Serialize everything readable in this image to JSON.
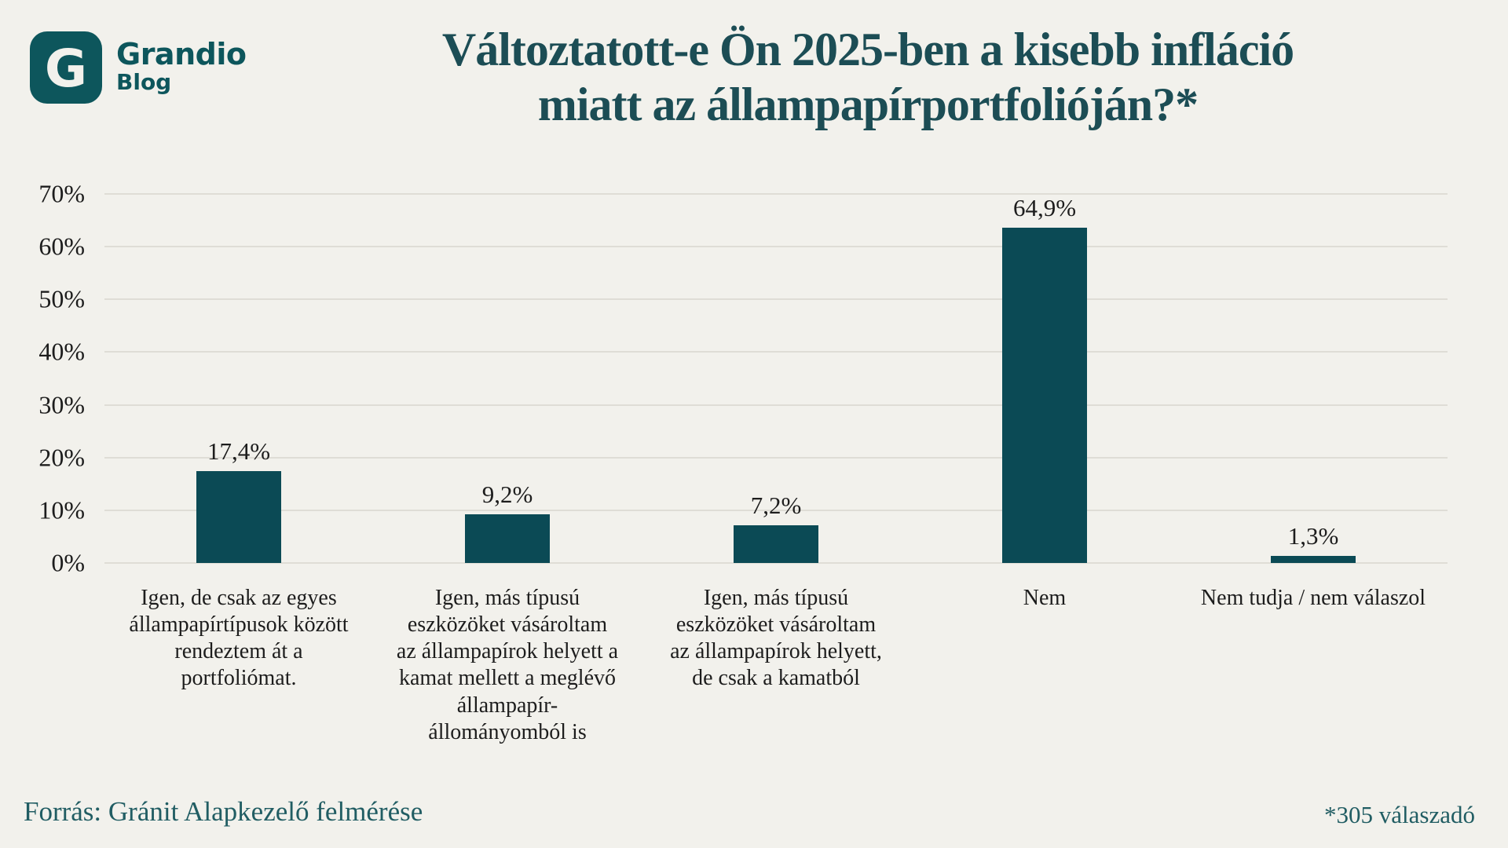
{
  "header": {
    "brand_name": "Grandio",
    "brand_sub": "Blog",
    "logo_letter": "G",
    "title": "Változtatott-e Ön 2025-ben a kisebb infláció\nmiatt az állampapírportfolióján?*"
  },
  "chart_data": {
    "type": "bar",
    "title": "Változtatott-e Ön 2025-ben a kisebb infláció miatt az állampapírportfolióján?*",
    "categories": [
      "Igen, de csak az egyes\nállampapírtípusok között\nrendeztem át a\nportfoliómat.",
      "Igen, más típusú\neszközöket vásároltam\naz állampapírok helyett a\nkamat mellett a meglévő\nállampapír-\nállományomból is",
      "Igen, más típusú\neszközöket vásároltam\naz állampapírok helyett,\nde csak a kamatból",
      "Nem",
      "Nem tudja / nem válaszol"
    ],
    "values": [
      17.4,
      9.2,
      7.2,
      64.9,
      1.3
    ],
    "value_labels": [
      "17,4%",
      "9,2%",
      "7,2%",
      "64,9%",
      "1,3%"
    ],
    "xlabel": "",
    "ylabel": "",
    "ylim": [
      0,
      70
    ],
    "ytick_step": 10,
    "ytick_suffix": "%",
    "ytick_labels": [
      "0%",
      "10%",
      "20%",
      "30%",
      "40%",
      "50%",
      "60%",
      "70%"
    ],
    "grid": true,
    "legend": false,
    "bar_color": "#0b4a55"
  },
  "footer": {
    "source": "Forrás: Gránit Alapkezelő felmérése",
    "note": "*305 válaszadó"
  },
  "colors": {
    "background": "#f2f1ec",
    "bar": "#0b4a55",
    "title": "#1c4d55",
    "brand": "#0d565c",
    "footer": "#215d63",
    "grid": "#dfddd6",
    "text": "#1d1d1d"
  }
}
